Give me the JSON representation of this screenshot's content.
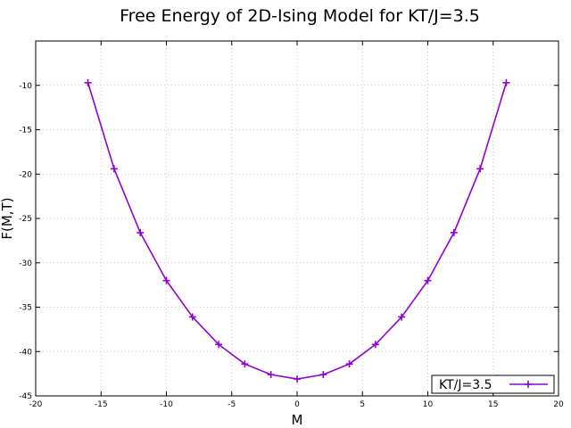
{
  "chart_data": {
    "type": "line",
    "title": "Free Energy of 2D-Ising Model for KT/J=3.5",
    "xlabel": "M",
    "ylabel": "F(M,T)",
    "xlim": [
      -20,
      20
    ],
    "ylim": [
      -45,
      -5
    ],
    "xticks": [
      -20,
      -15,
      -10,
      -5,
      0,
      5,
      10,
      15,
      20
    ],
    "yticks": [
      -45,
      -40,
      -35,
      -30,
      -25,
      -20,
      -15,
      -10
    ],
    "grid": true,
    "legend_position": "bottom-right",
    "series": [
      {
        "name": "KT/J=3.5",
        "color": "#9400d3",
        "marker": "plus",
        "x": [
          -16,
          -14,
          -12,
          -10,
          -8,
          -6,
          -4,
          -2,
          0,
          2,
          4,
          6,
          8,
          10,
          12,
          14,
          16
        ],
        "y": [
          -9.7,
          -19.4,
          -26.6,
          -32.0,
          -36.1,
          -39.2,
          -41.4,
          -42.6,
          -43.1,
          -42.6,
          -41.4,
          -39.2,
          -36.1,
          -32.0,
          -26.6,
          -19.4,
          -9.7
        ]
      }
    ]
  }
}
